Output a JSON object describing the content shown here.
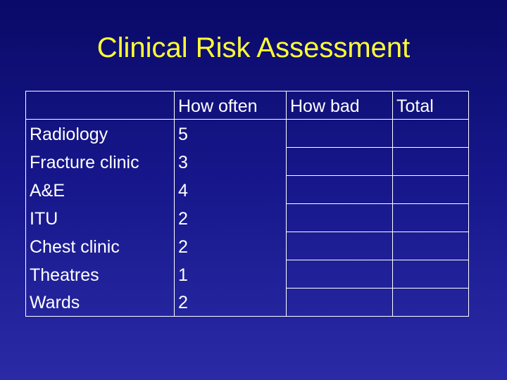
{
  "title": "Clinical Risk Assessment",
  "table": {
    "headers": [
      "",
      "How often",
      "How bad",
      "Total"
    ],
    "rows": [
      {
        "area": "Radiology",
        "how_often": "5",
        "how_bad": "",
        "total": ""
      },
      {
        "area": "Fracture clinic",
        "how_often": "3",
        "how_bad": "",
        "total": ""
      },
      {
        "area": "A&E",
        "how_often": "4",
        "how_bad": "",
        "total": ""
      },
      {
        "area": "ITU",
        "how_often": "2",
        "how_bad": "",
        "total": ""
      },
      {
        "area": "Chest clinic",
        "how_often": "2",
        "how_bad": "",
        "total": ""
      },
      {
        "area": "Theatres",
        "how_often": "1",
        "how_bad": "",
        "total": ""
      },
      {
        "area": "Wards",
        "how_often": "2",
        "how_bad": "",
        "total": ""
      }
    ]
  },
  "colors": {
    "title": "#ffff33",
    "text": "#ffffff",
    "background": "#16168a"
  }
}
